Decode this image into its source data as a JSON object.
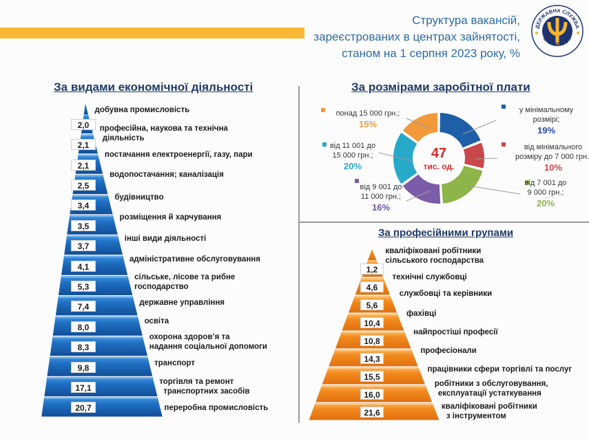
{
  "header": {
    "title_lines": [
      "Структура вакансій,",
      "зареєстрованих в центрах зайнятості,",
      "станом на 1 серпня 2023 року, %"
    ],
    "logo": {
      "top_text": "ДЕРЖАВНА СЛУЖБА",
      "bottom_text": "ЗАЙНЯТОСТІ",
      "icon": "psi-emblem-icon"
    },
    "accent_bar_color": "#f9b834",
    "title_color": "#2e6aa6"
  },
  "sections": {
    "economic": {
      "title": "За видами економічної діяльності",
      "color": "#1f6fc2"
    },
    "salary": {
      "title": "За розмірами заробітної плати",
      "center_value": "47",
      "center_unit": "тис. од."
    },
    "professional": {
      "title": "За професійними групами",
      "color": "#f08a1c"
    }
  },
  "chart_data": [
    {
      "type": "bar",
      "title": "За видами економічної діяльності",
      "layout": "pyramid",
      "categories": [
        "добувна промисловість",
        "професійна, наукова та технічна діяльність",
        "постачання електроенергії, газу, пари",
        "водопостачання; каналізація",
        "будівництво",
        "розміщення й харчування",
        "інші види діяльності",
        "адміністративне обслуговування",
        "сільське, лісове та рибне господарство",
        "державне управління",
        "освіта",
        "охорона здоров’я та надання соціальної допомоги",
        "транспорт",
        "торгівля та ремонт транспортних засобів",
        "переробна промисловість"
      ],
      "labels_lines": [
        [
          "добувна промисловість"
        ],
        [
          "професійна, наукова та технічна",
          "діяльність"
        ],
        [
          "постачання електроенергії, газу, пари"
        ],
        [
          "водопостачання; каналізація"
        ],
        [
          "будівництво"
        ],
        [
          "розміщення й харчування"
        ],
        [
          "інші види діяльності"
        ],
        [
          "адміністративне обслуговування"
        ],
        [
          "сільське, лісове та рибне",
          "господарство"
        ],
        [
          "державне управління"
        ],
        [
          "освіта"
        ],
        [
          "охорона здоров’я та",
          "надання соціальної допомоги"
        ],
        [
          "транспорт"
        ],
        [
          "торгівля та ремонт",
          "транспортних засобів"
        ],
        [
          "переробна промисловість"
        ]
      ],
      "values": [
        2.0,
        2.1,
        2.1,
        2.5,
        3.4,
        3.5,
        3.7,
        4.1,
        5.3,
        7.4,
        8.0,
        8.3,
        9.8,
        17.1,
        20.7
      ],
      "value_labels": [
        "2,0",
        "2,1",
        "2,1",
        "2,5",
        "3,4",
        "3,5",
        "3,7",
        "4,1",
        "5,3",
        "7,4",
        "8,0",
        "8,3",
        "9,8",
        "17,1",
        "20,7"
      ],
      "unit": "%"
    },
    {
      "type": "pie",
      "subtype": "donut",
      "title": "За розмірами заробітної плати",
      "center_label": "47 тис. од.",
      "categories": [
        "у мінімальному розмірі",
        "від мінімального розміру до 7 000 грн.",
        "від 7 001 до 9 000 грн.",
        "від 9 001 до 11 000 грн.",
        "від 11 001 до 15 000 грн.",
        "понад 15 000 грн."
      ],
      "values": [
        19,
        10,
        20,
        16,
        20,
        15
      ],
      "colors": [
        "#1f5fa8",
        "#c9474a",
        "#8db549",
        "#7b5ca8",
        "#27a9c9",
        "#f29a3b"
      ],
      "unit": "%",
      "legend_position": "around"
    },
    {
      "type": "bar",
      "title": "За професійними групами",
      "layout": "pyramid",
      "categories": [
        "кваліфіковані робітники сільського господарства",
        "технічні службовці",
        "службовці та керівники",
        "фахівці",
        "найпростіші професії",
        "професіонали",
        "працівники сфери торгівлі та послуг",
        "робітники з обслуговування, експлуатації устаткування",
        "кваліфіковані робітники з інструментом"
      ],
      "labels_lines": [
        [
          "кваліфіковані робітники",
          "сільського господарства"
        ],
        [
          "технічні службовці"
        ],
        [
          "службовці та керівники"
        ],
        [
          "фахівці"
        ],
        [
          "найпростіші професії"
        ],
        [
          "професіонали"
        ],
        [
          "працівники сфери торгівлі та  послуг"
        ],
        [
          "робітники з обслуговування,",
          "експлуатації устаткування"
        ],
        [
          "кваліфіковані робітники",
          "з інструментом"
        ]
      ],
      "values": [
        1.2,
        4.6,
        5.6,
        10.4,
        10.8,
        14.3,
        15.5,
        16.0,
        21.6
      ],
      "value_labels": [
        "1,2",
        "4,6",
        "5,6",
        "10,4",
        "10,8",
        "14,3",
        "15,5",
        "16,0",
        "21,6"
      ],
      "unit": "%"
    }
  ],
  "pie_labels": [
    {
      "lines": [
        "у мінімальному",
        "розмірі;"
      ],
      "pct": "19%",
      "color": "#2b4aa0",
      "marker": "#1f5fa8"
    },
    {
      "lines": [
        "від мінімального",
        "розміру до 7 000 грн.;"
      ],
      "pct": "10%",
      "color": "#c9474a",
      "marker": "#c9474a"
    },
    {
      "lines": [
        "від 7 001 до",
        "9 000 грн.;"
      ],
      "pct": "20%",
      "color": "#8db549",
      "marker": "#8db549"
    },
    {
      "lines": [
        "від 9 001 до",
        "11 000 грн.;"
      ],
      "pct": "16%",
      "color": "#6e56a0",
      "marker": "#7b5ca8"
    },
    {
      "lines": [
        "від 11 001 до",
        "15 000 грн.;"
      ],
      "pct": "20%",
      "color": "#27a9c9",
      "marker": "#27a9c9"
    },
    {
      "lines": [
        "понад 15 000 грн.;"
      ],
      "pct": "15%",
      "color": "#f29a3b",
      "marker": "#f29a3b"
    }
  ]
}
